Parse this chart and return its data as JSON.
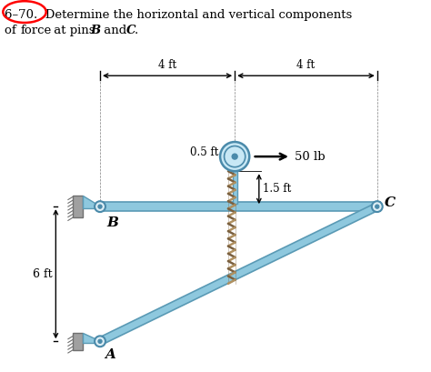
{
  "bg_color": "#ffffff",
  "beam_color": "#8ec8de",
  "beam_edge_color": "#5a9ab5",
  "wall_color": "#a0a0a0",
  "wall_edge_color": "#707070",
  "pin_face_color": "#ddeef5",
  "pin_edge_color": "#4a8aaa",
  "pulley_face_color": "#c8e8f5",
  "pulley_edge_color": "#4a8aaa",
  "rope_color1": "#7a6040",
  "rope_color2": "#b09060",
  "dim_color": "#222222",
  "force_color": "#111111",
  "label_B": "B",
  "label_C": "C",
  "label_A": "A",
  "dim_4ft_1": "4 ft",
  "dim_4ft_2": "4 ft",
  "dim_05ft": "0.5 ft",
  "dim_15ft": "1.5 ft",
  "dim_6ft": "6 ft",
  "force_label": "50 lb",
  "title_line1": "6–70.  Determine the horizontal and vertical components",
  "title_line2_pre": "of ",
  "title_line2_strike": "force",
  "title_line2_post": " at pins ",
  "title_B": "B",
  "title_and": " and ",
  "title_C": "C",
  "title_dot": "."
}
